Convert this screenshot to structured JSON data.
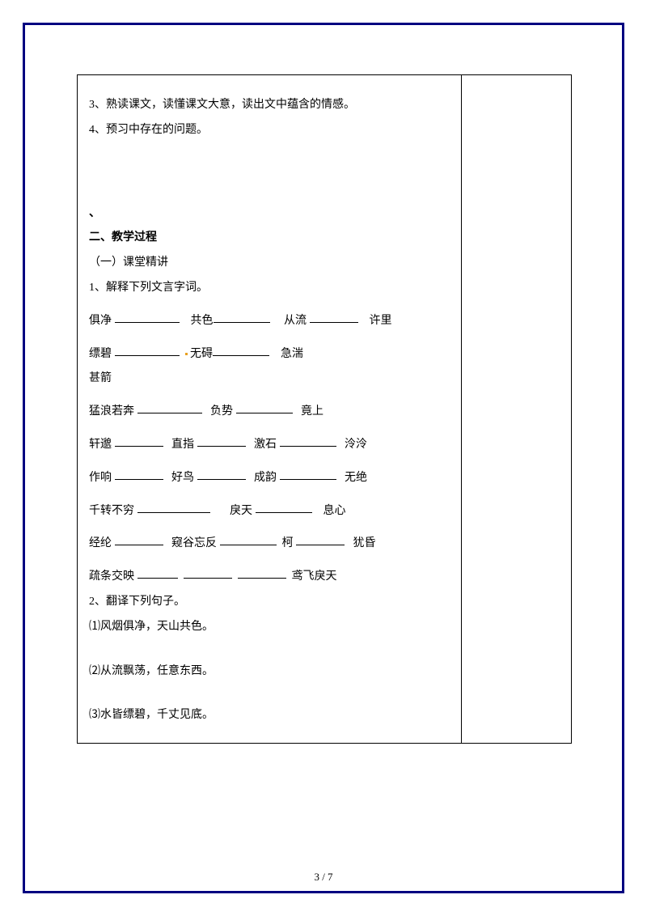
{
  "top": {
    "item3": "3、熟读课文，读懂课文大意，读出文中蕴含的情感。",
    "item4": "4、预习中存在的问题。"
  },
  "backtick": "、",
  "section2_title": "二、教学过程",
  "sub1_title": "（一）课堂精讲",
  "q1_title": "1、解释下列文言字词。",
  "row1": {
    "a": "俱净",
    "b": "共色",
    "c": "从流",
    "d": "许里"
  },
  "row2": {
    "a": "缥碧",
    "b": "无碍",
    "c": "急湍"
  },
  "row3": {
    "a": "甚箭"
  },
  "row4": {
    "a": "猛浪若奔",
    "b": "负势",
    "c": "竟上"
  },
  "row5": {
    "a": "轩邈",
    "b": "直指",
    "c": "激石",
    "d": "泠泠"
  },
  "row6": {
    "a": "作响",
    "b": "好鸟",
    "c": "成韵",
    "d": "无绝"
  },
  "row7": {
    "a": "千转不穷",
    "b": "戾天",
    "c": "息心"
  },
  "row8": {
    "a": "经纶",
    "b": "窥谷忘反",
    "c": "柯",
    "d": "犹昏"
  },
  "row9": {
    "a": "疏条交映",
    "b": "鸢飞戾天"
  },
  "q2_title": "2、翻译下列句子。",
  "sent1": "⑴风烟俱净，天山共色。",
  "sent2": "⑵从流飘荡，任意东西。",
  "sent3": "⑶水皆缥碧，千丈见底。",
  "pagenum": "3 / 7"
}
